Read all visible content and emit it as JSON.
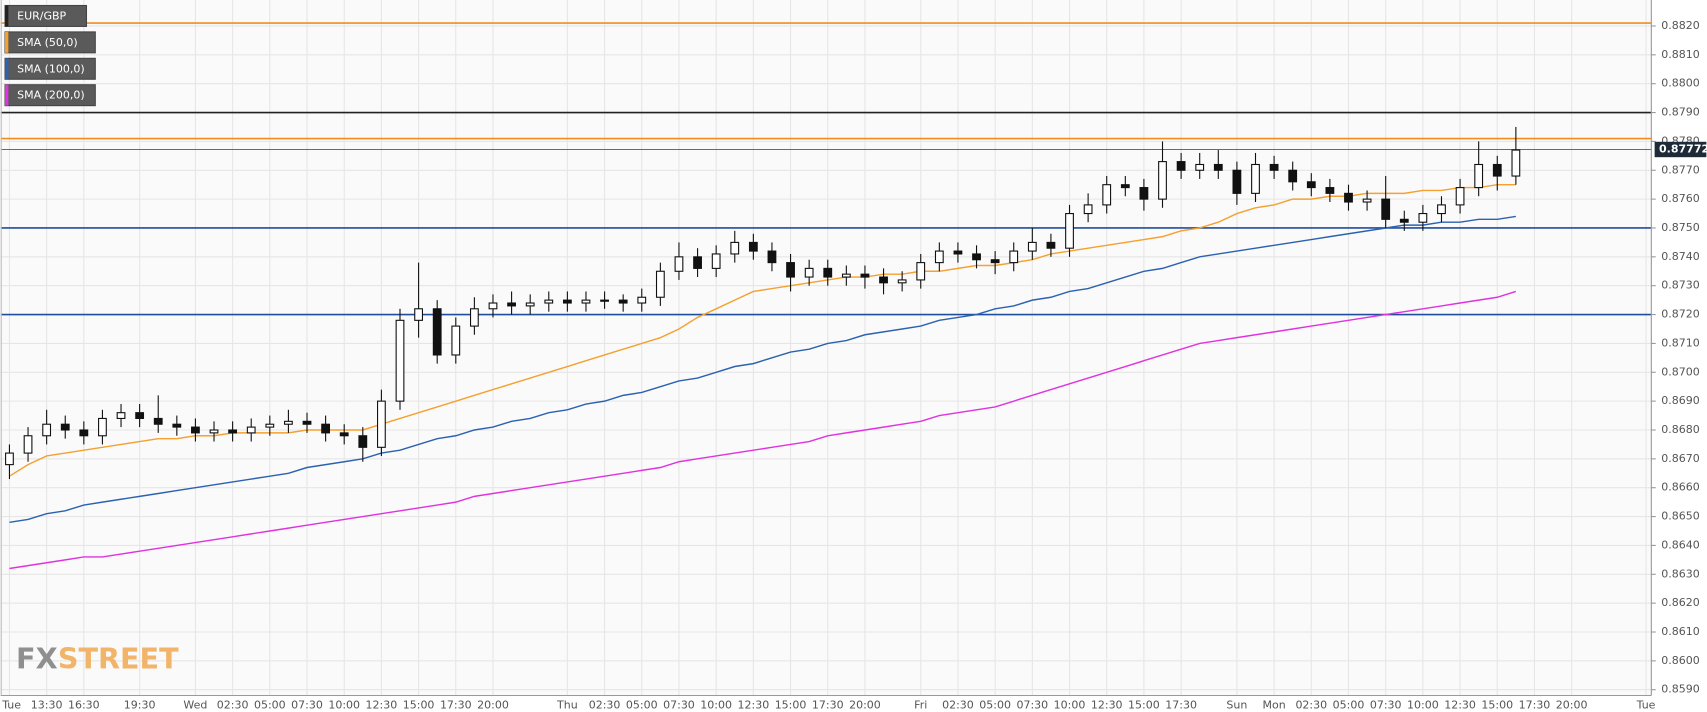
{
  "chart_data": {
    "type": "candlestick",
    "symbol": {
      "name": "EUR/GBP",
      "color": "#222222"
    },
    "categories": [
      "Tue",
      null,
      "13:30",
      null,
      "16:30",
      null,
      null,
      "19:30",
      null,
      null,
      "Wed",
      null,
      "02:30",
      null,
      "05:00",
      null,
      "07:30",
      null,
      "10:00",
      null,
      "12:30",
      null,
      "15:00",
      null,
      "17:30",
      null,
      "20:00",
      null,
      null,
      null,
      "Thu",
      null,
      "02:30",
      null,
      "05:00",
      null,
      "07:30",
      null,
      "10:00",
      null,
      "12:30",
      null,
      "15:00",
      null,
      "17:30",
      null,
      "20:00",
      null,
      null,
      "Fri",
      null,
      "02:30",
      null,
      "05:00",
      null,
      "07:30",
      null,
      "10:00",
      null,
      "12:30",
      null,
      "15:00",
      null,
      "17:30",
      null,
      null,
      "Sun",
      null,
      "Mon",
      null,
      "02:30",
      null,
      "05:00",
      null,
      "07:30",
      null,
      "10:00",
      null,
      "12:30",
      null,
      "15:00",
      null,
      "17:30",
      null,
      "20:00",
      null,
      null,
      null,
      "Tue"
    ],
    "open": [
      0.8668,
      0.8672,
      0.8678,
      0.8682,
      0.868,
      0.8678,
      0.8684,
      0.8686,
      0.8684,
      0.8682,
      0.8681,
      0.8679,
      0.868,
      0.8679,
      0.8681,
      0.8682,
      0.8683,
      0.8682,
      0.8679,
      0.8678,
      0.8674,
      0.869,
      0.8718,
      0.8722,
      0.8706,
      0.8716,
      0.8722,
      0.8724,
      0.8723,
      0.8724,
      0.8725,
      0.8724,
      0.8725,
      0.8725,
      0.8724,
      0.8726,
      0.8735,
      0.874,
      0.8736,
      0.8741,
      0.8745,
      0.8742,
      0.8738,
      0.8733,
      0.8736,
      0.8733,
      0.8734,
      0.8733,
      0.8731,
      0.8732,
      0.8738,
      0.8742,
      0.8741,
      0.8739,
      0.8738,
      0.8742,
      0.8745,
      0.8743,
      0.8755,
      0.8758,
      0.8765,
      0.8764,
      0.876,
      0.8773,
      0.877,
      0.8772,
      0.877,
      0.8762,
      0.8772,
      0.877,
      0.8766,
      0.8764,
      0.8762,
      0.8759,
      0.876,
      0.8753,
      0.8752,
      0.8755,
      0.8758,
      0.8764,
      0.8772,
      0.8768,
      null,
      null,
      null,
      null,
      null,
      null,
      null
    ],
    "high": [
      0.8675,
      0.8681,
      0.8687,
      0.8685,
      0.8683,
      0.8687,
      0.8689,
      0.8689,
      0.8692,
      0.8685,
      0.8684,
      0.8683,
      0.8683,
      0.8684,
      0.8685,
      0.8687,
      0.8686,
      0.8685,
      0.8682,
      0.8681,
      0.8694,
      0.8722,
      0.8738,
      0.8725,
      0.8719,
      0.8726,
      0.8727,
      0.8728,
      0.8727,
      0.8728,
      0.8728,
      0.8728,
      0.8728,
      0.8727,
      0.8729,
      0.8738,
      0.8745,
      0.8743,
      0.8744,
      0.8749,
      0.8748,
      0.8745,
      0.8741,
      0.8739,
      0.8739,
      0.8737,
      0.8737,
      0.8736,
      0.8735,
      0.8741,
      0.8745,
      0.8745,
      0.8744,
      0.8742,
      0.8745,
      0.875,
      0.8748,
      0.8758,
      0.8762,
      0.8768,
      0.8768,
      0.8767,
      0.878,
      0.8776,
      0.8776,
      0.8777,
      0.8773,
      0.8776,
      0.8775,
      0.8773,
      0.8769,
      0.8767,
      0.8765,
      0.8763,
      0.8768,
      0.8756,
      0.8758,
      0.8761,
      0.8767,
      0.878,
      0.8775,
      0.8785,
      null,
      null,
      null,
      null,
      null,
      null,
      null
    ],
    "low": [
      0.8663,
      0.8669,
      0.8675,
      0.8677,
      0.8675,
      0.8675,
      0.8681,
      0.8681,
      0.8679,
      0.8678,
      0.8676,
      0.8676,
      0.8676,
      0.8676,
      0.8678,
      0.8679,
      0.8679,
      0.8676,
      0.8675,
      0.8669,
      0.8671,
      0.8687,
      0.8712,
      0.8703,
      0.8703,
      0.8713,
      0.8719,
      0.872,
      0.872,
      0.8721,
      0.8721,
      0.8721,
      0.8722,
      0.8721,
      0.8721,
      0.8723,
      0.8732,
      0.8733,
      0.8733,
      0.8738,
      0.8739,
      0.8735,
      0.8728,
      0.873,
      0.873,
      0.873,
      0.8729,
      0.8727,
      0.8728,
      0.8729,
      0.8735,
      0.8738,
      0.8736,
      0.8734,
      0.8735,
      0.8739,
      0.874,
      0.874,
      0.8752,
      0.8755,
      0.8761,
      0.8756,
      0.8757,
      0.8767,
      0.8767,
      0.8767,
      0.8758,
      0.8759,
      0.8767,
      0.8763,
      0.8761,
      0.8759,
      0.8756,
      0.8756,
      0.875,
      0.8749,
      0.8749,
      0.8752,
      0.8755,
      0.8761,
      0.8763,
      0.8765,
      null,
      null,
      null,
      null,
      null,
      null,
      null
    ],
    "close": [
      0.8672,
      0.8678,
      0.8682,
      0.868,
      0.8678,
      0.8684,
      0.8686,
      0.8684,
      0.8682,
      0.8681,
      0.8679,
      0.868,
      0.8679,
      0.8681,
      0.8682,
      0.8683,
      0.8682,
      0.8679,
      0.8678,
      0.8674,
      0.869,
      0.8718,
      0.8722,
      0.8706,
      0.8716,
      0.8722,
      0.8724,
      0.8723,
      0.8724,
      0.8725,
      0.8724,
      0.8725,
      0.8725,
      0.8724,
      0.8726,
      0.8735,
      0.874,
      0.8736,
      0.8741,
      0.8745,
      0.8742,
      0.8738,
      0.8733,
      0.8736,
      0.8733,
      0.8734,
      0.8733,
      0.8731,
      0.8732,
      0.8738,
      0.8742,
      0.8741,
      0.8739,
      0.8738,
      0.8742,
      0.8745,
      0.8743,
      0.8755,
      0.8758,
      0.8765,
      0.8764,
      0.876,
      0.8773,
      0.877,
      0.8772,
      0.877,
      0.8762,
      0.8772,
      0.877,
      0.8766,
      0.8764,
      0.8762,
      0.8759,
      0.876,
      0.8753,
      0.8752,
      0.8755,
      0.8758,
      0.8764,
      0.8772,
      0.8768,
      0.8777,
      null,
      null,
      null,
      null,
      null,
      null,
      null
    ],
    "series": [
      {
        "name": "SMA (50,0)",
        "color": "#f5a030",
        "values": [
          0.8664,
          0.8668,
          0.8671,
          0.8672,
          0.8673,
          0.8674,
          0.8675,
          0.8676,
          0.8677,
          0.8677,
          0.8678,
          0.8678,
          0.8679,
          0.8679,
          0.8679,
          0.8679,
          0.868,
          0.868,
          0.868,
          0.868,
          0.8682,
          0.8684,
          0.8686,
          0.8688,
          0.869,
          0.8692,
          0.8694,
          0.8696,
          0.8698,
          0.87,
          0.8702,
          0.8704,
          0.8706,
          0.8708,
          0.871,
          0.8712,
          0.8715,
          0.8719,
          0.8722,
          0.8725,
          0.8728,
          0.8729,
          0.873,
          0.8731,
          0.8732,
          0.8733,
          0.8733,
          0.8734,
          0.8734,
          0.8735,
          0.8735,
          0.8736,
          0.8737,
          0.8737,
          0.8738,
          0.8739,
          0.8741,
          0.8742,
          0.8743,
          0.8744,
          0.8745,
          0.8746,
          0.8747,
          0.8749,
          0.875,
          0.8752,
          0.8755,
          0.8757,
          0.8758,
          0.876,
          0.876,
          0.8761,
          0.8761,
          0.8762,
          0.8762,
          0.8762,
          0.8763,
          0.8763,
          0.8764,
          0.8764,
          0.8765,
          0.8765,
          null,
          null,
          null,
          null,
          null,
          null,
          null
        ]
      },
      {
        "name": "SMA (100,0)",
        "color": "#2c62b0",
        "values": [
          0.8648,
          0.8649,
          0.8651,
          0.8652,
          0.8654,
          0.8655,
          0.8656,
          0.8657,
          0.8658,
          0.8659,
          0.866,
          0.8661,
          0.8662,
          0.8663,
          0.8664,
          0.8665,
          0.8667,
          0.8668,
          0.8669,
          0.867,
          0.8672,
          0.8673,
          0.8675,
          0.8677,
          0.8678,
          0.868,
          0.8681,
          0.8683,
          0.8684,
          0.8686,
          0.8687,
          0.8689,
          0.869,
          0.8692,
          0.8693,
          0.8695,
          0.8697,
          0.8698,
          0.87,
          0.8702,
          0.8703,
          0.8705,
          0.8707,
          0.8708,
          0.871,
          0.8711,
          0.8713,
          0.8714,
          0.8715,
          0.8716,
          0.8718,
          0.8719,
          0.872,
          0.8722,
          0.8723,
          0.8725,
          0.8726,
          0.8728,
          0.8729,
          0.8731,
          0.8733,
          0.8735,
          0.8736,
          0.8738,
          0.874,
          0.8741,
          0.8742,
          0.8743,
          0.8744,
          0.8745,
          0.8746,
          0.8747,
          0.8748,
          0.8749,
          0.875,
          0.8751,
          0.8751,
          0.8752,
          0.8752,
          0.8753,
          0.8753,
          0.8754,
          null,
          null,
          null,
          null,
          null,
          null,
          null
        ]
      },
      {
        "name": "SMA (200,0)",
        "color": "#e033e0",
        "values": [
          0.8632,
          0.8633,
          0.8634,
          0.8635,
          0.8636,
          0.8636,
          0.8637,
          0.8638,
          0.8639,
          0.864,
          0.8641,
          0.8642,
          0.8643,
          0.8644,
          0.8645,
          0.8646,
          0.8647,
          0.8648,
          0.8649,
          0.865,
          0.8651,
          0.8652,
          0.8653,
          0.8654,
          0.8655,
          0.8657,
          0.8658,
          0.8659,
          0.866,
          0.8661,
          0.8662,
          0.8663,
          0.8664,
          0.8665,
          0.8666,
          0.8667,
          0.8669,
          0.867,
          0.8671,
          0.8672,
          0.8673,
          0.8674,
          0.8675,
          0.8676,
          0.8678,
          0.8679,
          0.868,
          0.8681,
          0.8682,
          0.8683,
          0.8685,
          0.8686,
          0.8687,
          0.8688,
          0.869,
          0.8692,
          0.8694,
          0.8696,
          0.8698,
          0.87,
          0.8702,
          0.8704,
          0.8706,
          0.8708,
          0.871,
          0.8711,
          0.8712,
          0.8713,
          0.8714,
          0.8715,
          0.8716,
          0.8717,
          0.8718,
          0.8719,
          0.872,
          0.8721,
          0.8722,
          0.8723,
          0.8724,
          0.8725,
          0.8726,
          0.8728,
          null,
          null,
          null,
          null,
          null,
          null,
          null
        ]
      }
    ],
    "levels": [
      {
        "value": 0.8821,
        "color": "#f28c1e"
      },
      {
        "value": 0.879,
        "color": "#222222"
      },
      {
        "value": 0.8781,
        "color": "#f28c1e"
      },
      {
        "value": 0.875,
        "color": "#1f4e9c"
      },
      {
        "value": 0.872,
        "color": "#1f4e9c"
      }
    ],
    "last_price": {
      "value": 0.87772,
      "label": "0.87772"
    },
    "ylim": [
      0.8588,
      0.8829
    ],
    "yticks": [
      {
        "value": 0.859,
        "label": "0.8590"
      },
      {
        "value": 0.86,
        "label": "0.8600"
      },
      {
        "value": 0.861,
        "label": "0.8610"
      },
      {
        "value": 0.862,
        "label": "0.8620"
      },
      {
        "value": 0.863,
        "label": "0.8630"
      },
      {
        "value": 0.864,
        "label": "0.8640"
      },
      {
        "value": 0.865,
        "label": "0.8650"
      },
      {
        "value": 0.866,
        "label": "0.8660"
      },
      {
        "value": 0.867,
        "label": "0.8670"
      },
      {
        "value": 0.868,
        "label": "0.8680"
      },
      {
        "value": 0.869,
        "label": "0.8690"
      },
      {
        "value": 0.87,
        "label": "0.8700"
      },
      {
        "value": 0.871,
        "label": "0.8710"
      },
      {
        "value": 0.872,
        "label": "0.8720"
      },
      {
        "value": 0.873,
        "label": "0.8730"
      },
      {
        "value": 0.874,
        "label": "0.8740"
      },
      {
        "value": 0.875,
        "label": "0.8750"
      },
      {
        "value": 0.876,
        "label": "0.8760"
      },
      {
        "value": 0.877,
        "label": "0.8770"
      },
      {
        "value": 0.878,
        "label": "0.8780"
      },
      {
        "value": 0.879,
        "label": "0.8790"
      },
      {
        "value": 0.88,
        "label": "0.8800"
      },
      {
        "value": 0.881,
        "label": "0.8810"
      },
      {
        "value": 0.882,
        "label": "0.8820"
      }
    ],
    "grid": true,
    "watermark": {
      "prefix": "FX",
      "suffix": "STREET"
    }
  }
}
